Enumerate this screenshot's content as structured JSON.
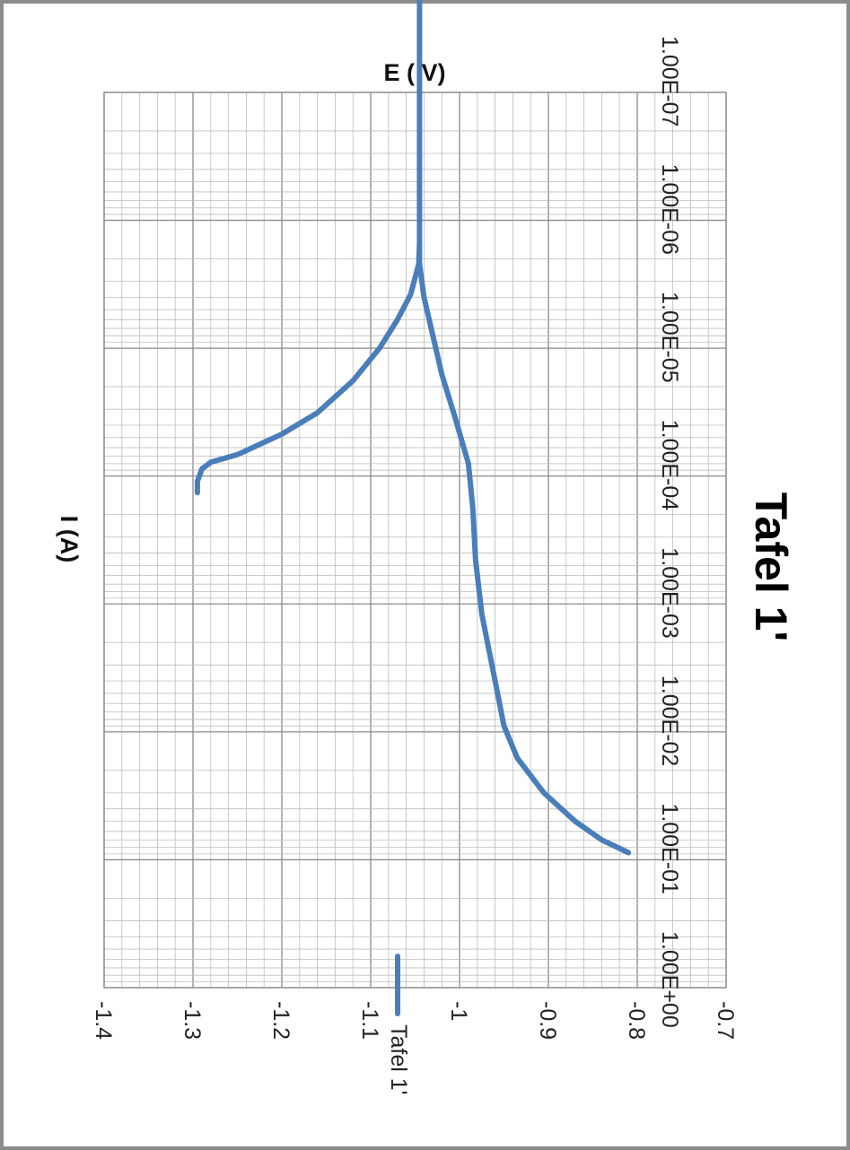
{
  "chart_data": {
    "type": "line",
    "title": "Tafel 1'",
    "xlabel": "E ( V)",
    "ylabel": "I (A)",
    "x_range": [
      -1.4,
      -0.7
    ],
    "x_ticks": [
      "-1.4",
      "-1.3",
      "-1.2",
      "-1.1",
      "-1",
      "-0.9",
      "-0.8",
      "-0.7"
    ],
    "y_scale": "log",
    "y_range": [
      1e-07,
      1
    ],
    "y_ticks": [
      "1.00E-07",
      "1.00E-06",
      "1.00E-05",
      "1.00E-04",
      "1.00E-03",
      "1.00E-02",
      "1.00E-01",
      "1.00E+00"
    ],
    "grid": true,
    "legend": "bottom-left",
    "series": [
      {
        "name": "Tafel 1'",
        "color": "#4a7ebb",
        "points": [
          [
            -1.295,
            0.000135
          ],
          [
            -1.295,
            0.00011
          ],
          [
            -1.29,
            8.8e-05
          ],
          [
            -1.28,
            7.8e-05
          ],
          [
            -1.25,
            6.8e-05
          ],
          [
            -1.2,
            4.7e-05
          ],
          [
            -1.16,
            3.2e-05
          ],
          [
            -1.12,
            1.8e-05
          ],
          [
            -1.09,
            1e-05
          ],
          [
            -1.07,
            6e-06
          ],
          [
            -1.055,
            3.8e-06
          ],
          [
            -1.05,
            2.8e-06
          ],
          [
            -1.046,
            2.2e-06
          ],
          [
            -1.045,
            1.5e-06
          ],
          [
            -1.045,
            1e-06
          ],
          [
            -1.045,
            5e-07
          ],
          [
            -1.045,
            2.5e-07
          ],
          [
            -1.045,
            1e-07
          ],
          [
            -1.045,
            3.7e-08
          ],
          [
            -1.045,
            1e-08
          ],
          [
            -1.045,
            1e-06
          ],
          [
            -1.045,
            2.2e-06
          ],
          [
            -1.04,
            4e-06
          ],
          [
            -1.03,
            8e-06
          ],
          [
            -1.02,
            1.6e-05
          ],
          [
            -1.005,
            3.5e-05
          ],
          [
            -0.99,
            8e-05
          ],
          [
            -0.985,
            0.00018
          ],
          [
            -0.982,
            0.00045
          ],
          [
            -0.975,
            0.0012
          ],
          [
            -0.96,
            0.004
          ],
          [
            -0.95,
            0.009
          ],
          [
            -0.935,
            0.016
          ],
          [
            -0.905,
            0.03
          ],
          [
            -0.87,
            0.05
          ],
          [
            -0.84,
            0.07
          ],
          [
            -0.81,
            0.088
          ]
        ]
      }
    ]
  }
}
